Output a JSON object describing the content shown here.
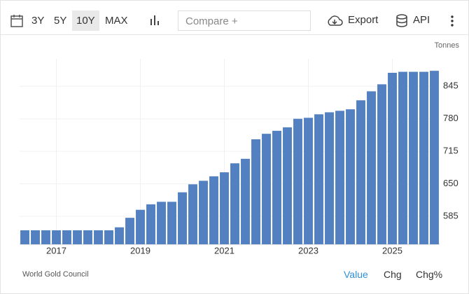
{
  "toolbar": {
    "ranges": [
      "3Y",
      "5Y",
      "10Y",
      "MAX"
    ],
    "compare": "Compare +",
    "export": "Export",
    "api": "API"
  },
  "chart_data": {
    "type": "bar",
    "y_label": "Tonnes",
    "color": "#5280c1",
    "categories": [
      null,
      null,
      null,
      "2017",
      null,
      null,
      null,
      null,
      null,
      null,
      null,
      "2019",
      null,
      null,
      null,
      null,
      null,
      null,
      null,
      "2021",
      null,
      null,
      null,
      null,
      null,
      null,
      null,
      "2023",
      null,
      null,
      null,
      null,
      null,
      null,
      null,
      "2025",
      null,
      null,
      null,
      null
    ],
    "values": [
      557,
      557,
      557,
      557,
      557,
      557,
      557,
      557,
      557,
      563,
      582,
      598,
      609,
      614,
      614,
      633,
      649,
      656,
      665,
      673,
      691,
      700,
      739,
      750,
      756,
      763,
      780,
      782,
      789,
      793,
      796,
      799,
      817,
      835,
      849,
      872,
      874,
      874,
      874,
      876
    ],
    "ylim": [
      529,
      900
    ],
    "yticks": [
      585,
      650,
      715,
      780,
      845
    ],
    "grid": true
  },
  "footer": {
    "source": "World Gold Council",
    "tabs": [
      "Value",
      "Chg",
      "Chg%"
    ]
  }
}
